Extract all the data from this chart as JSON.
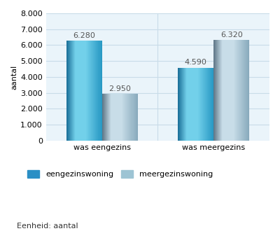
{
  "categories": [
    "was eengezins",
    "was meergezins"
  ],
  "series": {
    "eengezinswoning": [
      6280,
      4590
    ],
    "meergezinswoning": [
      2950,
      6320
    ]
  },
  "bar_color_een": [
    "#4BBEE8",
    "#2288BB"
  ],
  "bar_color_meer": [
    "#B0D0DC",
    "#7799A8"
  ],
  "legend_color_een": "#2B8FC5",
  "legend_color_meer": "#9DC4D4",
  "ylabel": "aantal",
  "ylim": [
    0,
    8000
  ],
  "yticks": [
    0,
    1000,
    2000,
    3000,
    4000,
    5000,
    6000,
    7000,
    8000
  ],
  "grid_color": "#C8DCE8",
  "background_color": "#EAF4FA",
  "bar_width": 0.32,
  "label_fontsize": 8,
  "axis_fontsize": 8,
  "legend_labels": [
    "eengezinswoning",
    "meergezinswoning"
  ],
  "footer_text": "Eenheid: aantal",
  "value_color": "#555555"
}
